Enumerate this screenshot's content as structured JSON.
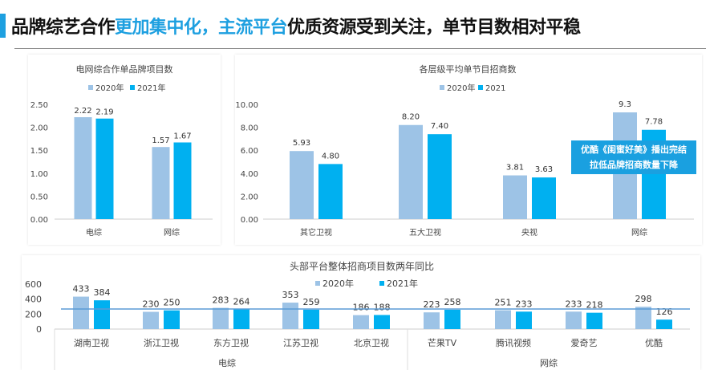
{
  "header": {
    "title_parts": [
      "品牌综艺合作",
      "更加集中化，主流平台",
      "优质资源受到关注，单节目数相对平稳"
    ]
  },
  "colors": {
    "s2020": "#9dc3e6",
    "s2021": "#00b0f0",
    "accent": "#1ea0e0"
  },
  "chart_data": [
    {
      "type": "bar",
      "title": "电网综合作单品牌项目数",
      "categories": [
        "电综",
        "网综"
      ],
      "series": [
        {
          "name": "2020年",
          "values": [
            2.22,
            1.57
          ]
        },
        {
          "name": "2021年",
          "values": [
            2.19,
            1.67
          ]
        }
      ],
      "labels": [
        [
          "2.22",
          "1.57"
        ],
        [
          "2.19",
          "1.67"
        ]
      ],
      "yticks": [
        "0.00",
        "0.50",
        "1.00",
        "1.50",
        "2.00",
        "2.50"
      ],
      "ylim": [
        0,
        2.5
      ],
      "legend": "top"
    },
    {
      "type": "bar",
      "title": "各层级平均单节目招商数",
      "categories": [
        "其它卫视",
        "五大卫视",
        "央视",
        "网综"
      ],
      "series": [
        {
          "name": "2020年",
          "values": [
            5.93,
            8.2,
            3.81,
            9.3
          ]
        },
        {
          "name": "2021",
          "values": [
            4.8,
            7.4,
            3.63,
            7.78
          ]
        }
      ],
      "labels": [
        [
          "5.93",
          "8.20",
          "3.81",
          "9.3"
        ],
        [
          "4.80",
          "7.40",
          "3.63",
          "7.78"
        ]
      ],
      "yticks": [
        "0.00",
        "2.00",
        "4.00",
        "6.00",
        "8.00",
        "10.00"
      ],
      "ylim": [
        0,
        10
      ],
      "legend": "top",
      "annotation": [
        "优酷《闺蜜好美》播出完结",
        "拉低品牌招商数量下降"
      ]
    },
    {
      "type": "bar",
      "title": "头部平台整体招商项目数两年同比",
      "categories": [
        "湖南卫视",
        "浙江卫视",
        "东方卫视",
        "江苏卫视",
        "北京卫视",
        "芒果TV",
        "腾讯视频",
        "爱奇艺",
        "优酷"
      ],
      "groups": [
        {
          "label": "电综",
          "count": 5
        },
        {
          "label": "网综",
          "count": 4
        }
      ],
      "series": [
        {
          "name": "2020年",
          "values": [
            433,
            230,
            283,
            353,
            186,
            223,
            251,
            233,
            298
          ]
        },
        {
          "name": "2021年",
          "values": [
            384,
            250,
            264,
            259,
            188,
            258,
            233,
            218,
            126
          ]
        }
      ],
      "yticks": [
        "0",
        "200",
        "400",
        "600"
      ],
      "ylim": [
        0,
        600
      ],
      "legend": "top"
    }
  ]
}
